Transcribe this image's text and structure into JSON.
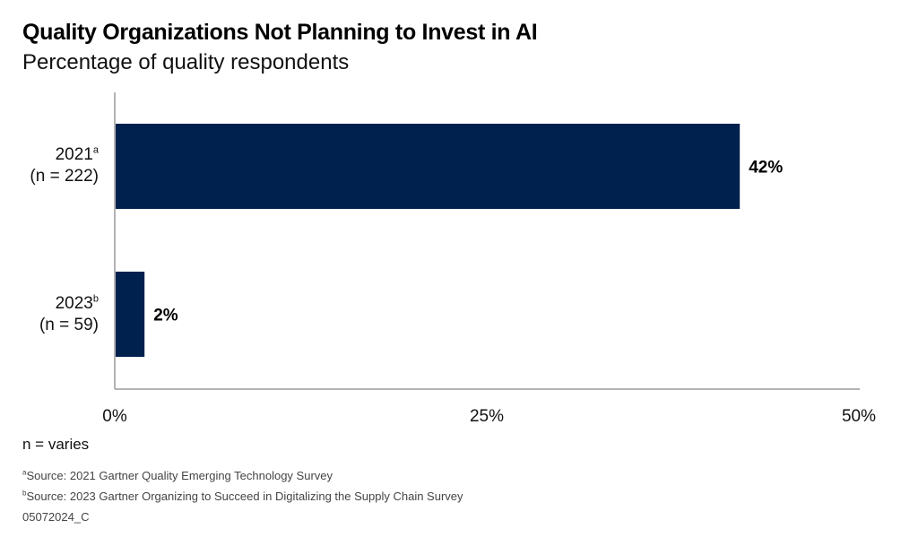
{
  "chart_data": {
    "type": "bar",
    "orientation": "horizontal",
    "title": "Quality Organizations Not Planning to Invest in AI",
    "subtitle": "Percentage of quality respondents",
    "categories": [
      {
        "year": "2021",
        "marker": "a",
        "n": "(n = 222)"
      },
      {
        "year": "2023",
        "marker": "b",
        "n": "(n = 59)"
      }
    ],
    "values": [
      42,
      2
    ],
    "data_labels": [
      "42%",
      "2%"
    ],
    "xlim": [
      0,
      50
    ],
    "x_ticks": [
      "0%",
      "25%",
      "50%"
    ],
    "grid": false,
    "bar_color": "#00204E"
  },
  "notes": {
    "n_label": "n = varies",
    "footnotes": [
      {
        "marker": "a",
        "text": "Source: 2021 Gartner Quality Emerging Technology Survey"
      },
      {
        "marker": "b",
        "text": "Source: 2023 Gartner Organizing to Succeed in Digitalizing the Supply Chain Survey"
      }
    ],
    "code": "05072024_C"
  }
}
